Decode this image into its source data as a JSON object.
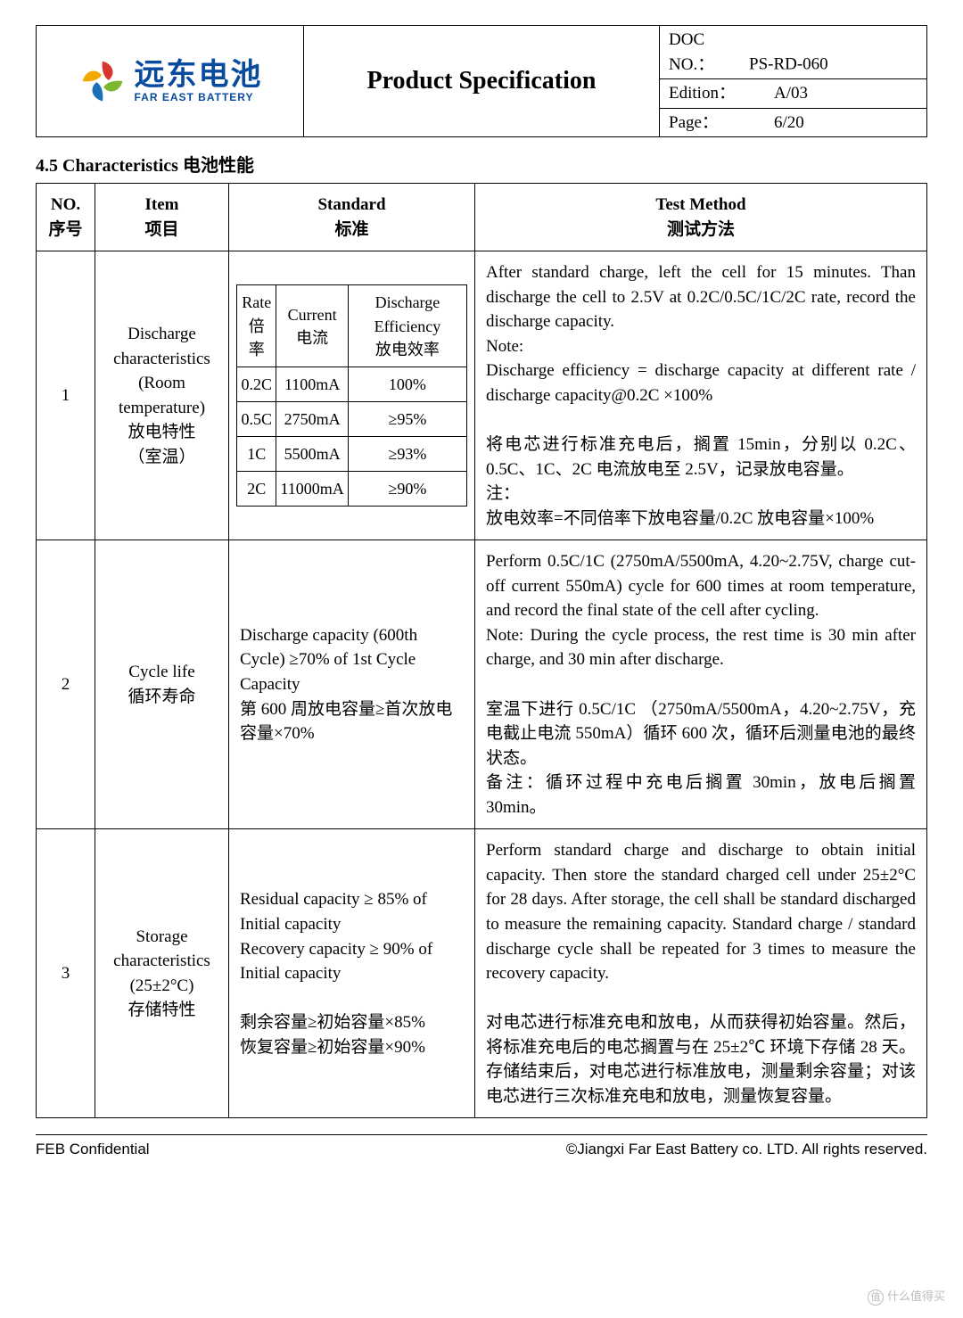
{
  "header": {
    "logo_cn": "远东电池",
    "logo_en": "FAR EAST BATTERY",
    "title": "Product Specification",
    "doc_no_label": "DOC NO.：",
    "doc_no": "PS-RD-060",
    "edition_label": "Edition：",
    "edition": "A/03",
    "page_label": "Page：",
    "page": "6/20"
  },
  "section_title": "4.5 Characteristics 电池性能",
  "thead": {
    "no": "NO.\n序号",
    "item": "Item\n项目",
    "standard": "Standard\n标准",
    "method": "Test Method\n测试方法"
  },
  "inner_head": {
    "rate": "Rate\n倍率",
    "current": "Current\n电流",
    "eff": "Discharge Efficiency\n放电效率"
  },
  "inner_rows": [
    {
      "rate": "0.2C",
      "current": "1100mA",
      "eff": "100%"
    },
    {
      "rate": "0.5C",
      "current": "2750mA",
      "eff": "≥95%"
    },
    {
      "rate": "1C",
      "current": "5500mA",
      "eff": "≥93%"
    },
    {
      "rate": "2C",
      "current": "11000mA",
      "eff": "≥90%"
    }
  ],
  "rows": [
    {
      "no": "1",
      "item": "Discharge characteristics (Room temperature)\n放电特性\n（室温）",
      "method": "After standard charge, left the cell for 15 minutes. Than discharge the cell to 2.5V at 0.2C/0.5C/1C/2C rate, record the discharge capacity.\nNote:\nDischarge efficiency = discharge capacity at different rate / discharge capacity@0.2C ×100%\n\n将电芯进行标准充电后，搁置 15min，分别以 0.2C、0.5C、1C、2C 电流放电至 2.5V，记录放电容量。\n注：\n放电效率=不同倍率下放电容量/0.2C 放电容量×100%"
    },
    {
      "no": "2",
      "item": "Cycle life\n循环寿命",
      "standard": "Discharge capacity (600th Cycle) ≥70% of 1st Cycle Capacity\n第 600 周放电容量≥首次放电容量×70%",
      "method": "Perform 0.5C/1C (2750mA/5500mA, 4.20~2.75V, charge cut-off current 550mA) cycle for 600 times at room temperature, and record the final state of the cell after cycling.\nNote: During the cycle process, the rest time is 30 min after charge, and 30 min after discharge.\n\n室温下进行 0.5C/1C （2750mA/5500mA，4.20~2.75V，充电截止电流 550mA）循环 600 次，循环后测量电池的最终状态。\n备注：循环过程中充电后搁置 30min，放电后搁置 30min。"
    },
    {
      "no": "3",
      "item": "Storage characteristics\n(25±2°C)\n存储特性",
      "standard": "Residual capacity ≥ 85% of Initial capacity\nRecovery capacity ≥ 90% of Initial capacity\n\n剩余容量≥初始容量×85%\n恢复容量≥初始容量×90%",
      "method": "Perform standard charge and discharge to obtain initial capacity. Then store the standard charged cell under 25±2°C for 28 days. After storage, the cell shall be standard discharged to measure the remaining capacity. Standard charge / standard discharge cycle shall be repeated for 3 times to measure the recovery capacity.\n\n对电芯进行标准充电和放电，从而获得初始容量。然后，将标准充电后的电芯搁置与在 25±2℃ 环境下存储 28 天。存储结束后，对电芯进行标准放电，测量剩余容量；对该电芯进行三次标准充电和放电，测量恢复容量。"
    }
  ],
  "footer": {
    "left": "FEB Confidential",
    "right": "©Jiangxi Far East Battery co. LTD. All rights reserved."
  },
  "watermark": {
    "badge": "值",
    "text": "什么值得买"
  },
  "colors": {
    "brand_blue": "#084a9e",
    "petal_red": "#d9352c",
    "petal_green": "#7cb82f",
    "petal_blue": "#1b6fb5",
    "petal_yellow": "#f2a900"
  }
}
